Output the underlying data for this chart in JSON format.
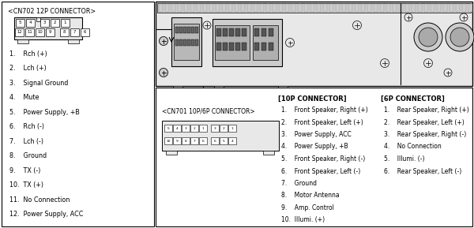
{
  "bg_color": "#ffffff",
  "border_color": "#000000",
  "text_color": "#000000",
  "cn702_title": "<CN702 12P CONNECTOR>",
  "cn702_list": [
    "1.    Rch (+)",
    "2.    Lch (+)",
    "3.    Signal Ground",
    "4.    Mute",
    "5.    Power Supply, +B",
    "6.    Rch (-)",
    "7.    Lch (-)",
    "8.    Ground",
    "9.    TX (-)",
    "10.  TX (+)",
    "11.  No Connection",
    "12.  Power Supply, ACC"
  ],
  "cn701_title": "<CN701 10P/6P CONNECTOR>",
  "con10p_title": "[10P CONNECTOR]",
  "con10p_list": [
    "1.    Front Speaker, Right (+)",
    "2.    Front Speaker, Left (+)",
    "3.    Power Supply, ACC",
    "4.    Power Supply, +B",
    "5.    Front Speaker, Right (-)",
    "6.    Front Speaker, Left (-)",
    "7.    Ground",
    "8.    Motor Antenna",
    "9.    Amp. Control",
    "10.  Illumi. (+)"
  ],
  "con6p_title": "[6P CONNECTOR]",
  "con6p_list": [
    "1.    Rear Speaker, Right (+)",
    "2.    Rear Speaker, Left (+)",
    "3.    Rear Speaker, Right (-)",
    "4.    No Connection",
    "5.    Illumi. (-)",
    "6.    Rear Speaker, Left (-)"
  ],
  "gray_light": "#e8e8e8",
  "gray_mid": "#cccccc",
  "gray_dark": "#aaaaaa",
  "gray_connector": "#888888"
}
